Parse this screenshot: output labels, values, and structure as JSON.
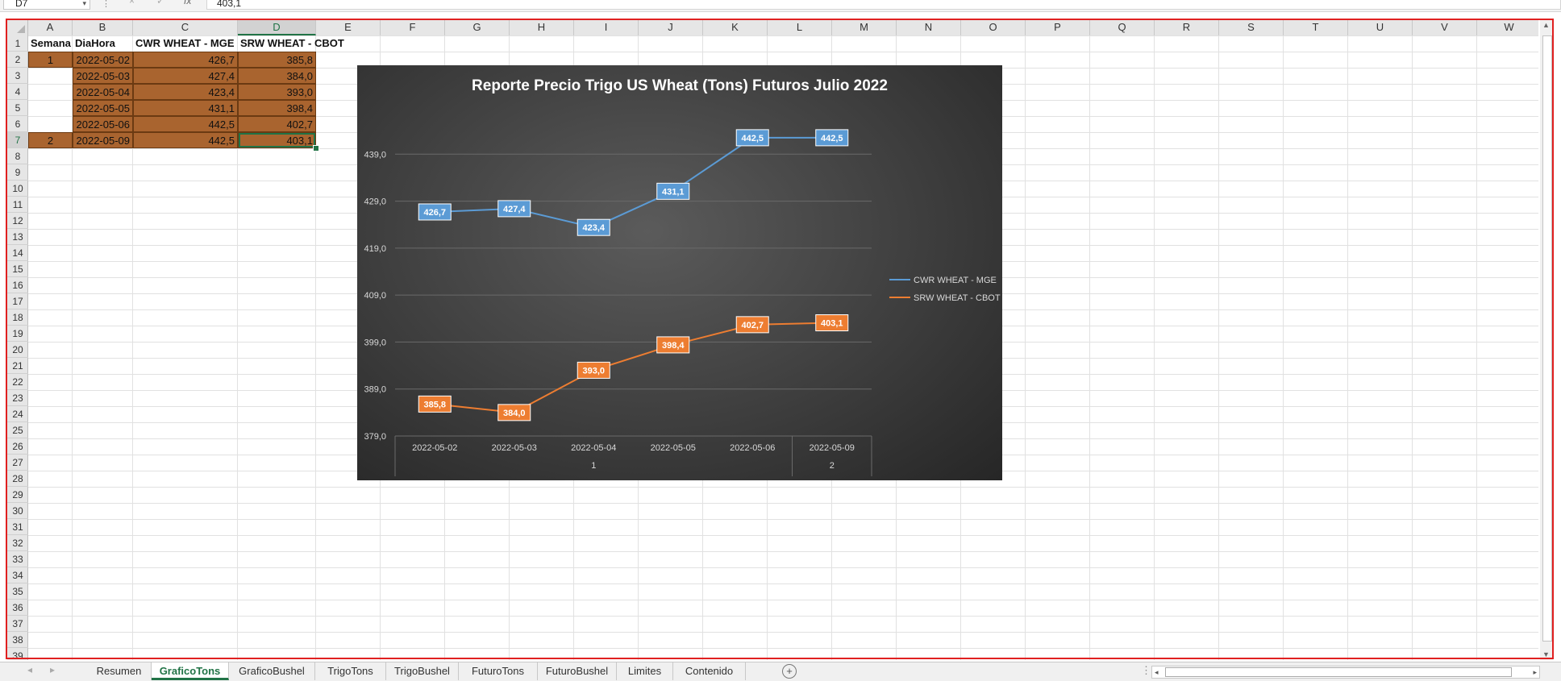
{
  "formula_bar": {
    "name_box": "D7",
    "cancel_icon": "×",
    "enter_icon": "✓",
    "fx_label": "fx",
    "value": "403,1"
  },
  "columns": [
    "A",
    "B",
    "C",
    "D",
    "E",
    "F",
    "G",
    "H",
    "I",
    "J",
    "K",
    "L",
    "M",
    "N",
    "O",
    "P",
    "Q",
    "R",
    "S",
    "T",
    "U",
    "V",
    "W"
  ],
  "rows": [
    "1",
    "2",
    "3",
    "4",
    "5",
    "6",
    "7",
    "8",
    "9",
    "10",
    "11",
    "12",
    "13",
    "14",
    "15",
    "16",
    "17",
    "18",
    "19",
    "20",
    "21",
    "22",
    "23",
    "24",
    "25",
    "26",
    "27",
    "28",
    "29",
    "30",
    "31",
    "32",
    "33",
    "34",
    "35",
    "36",
    "37",
    "38",
    "39"
  ],
  "table": {
    "headers": [
      "Semana",
      "DiaHora",
      "CWR WHEAT - MGE",
      "SRW WHEAT - CBOT"
    ],
    "rows": [
      [
        "1",
        "2022-05-02",
        "426,7",
        "385,8"
      ],
      [
        "",
        "2022-05-03",
        "427,4",
        "384,0"
      ],
      [
        "",
        "2022-05-04",
        "423,4",
        "393,0"
      ],
      [
        "",
        "2022-05-05",
        "431,1",
        "398,4"
      ],
      [
        "",
        "2022-05-06",
        "442,5",
        "402,7"
      ],
      [
        "2",
        "2022-05-09",
        "442,5",
        "403,1"
      ]
    ]
  },
  "chart_data": {
    "type": "line",
    "title": "Reporte Precio Trigo US Wheat (Tons) Futuros Julio 2022",
    "categories": [
      "2022-05-02",
      "2022-05-03",
      "2022-05-04",
      "2022-05-05",
      "2022-05-06",
      "2022-05-09"
    ],
    "group_labels": [
      {
        "label": "1",
        "span": [
          0,
          4
        ]
      },
      {
        "label": "2",
        "span": [
          5,
          5
        ]
      }
    ],
    "series": [
      {
        "name": "CWR WHEAT - MGE",
        "color": "#5b9bd5",
        "values": [
          426.7,
          427.4,
          423.4,
          431.1,
          442.5,
          442.5
        ],
        "labels": [
          "426,7",
          "427,4",
          "423,4",
          "431,1",
          "442,5",
          "442,5"
        ]
      },
      {
        "name": "SRW WHEAT - CBOT",
        "color": "#ed7d31",
        "values": [
          385.8,
          384.0,
          393.0,
          398.4,
          402.7,
          403.1
        ],
        "labels": [
          "385,8",
          "384,0",
          "393,0",
          "398,4",
          "402,7",
          "403,1"
        ]
      }
    ],
    "yticks": [
      "379,0",
      "389,0",
      "399,0",
      "409,0",
      "419,0",
      "429,0",
      "439,0"
    ],
    "ylim": [
      379,
      449
    ],
    "grid": true,
    "legend_position": "right"
  },
  "sheet_tabs": [
    "Resumen",
    "GraficoTons",
    "GraficoBushel",
    "TrigoTons",
    "TrigoBushel",
    "FuturoTons",
    "FuturoBushel",
    "Limites",
    "Contenido"
  ],
  "active_tab": "GraficoTons",
  "colors": {
    "cell_fill": "#a9642f",
    "excel_green": "#217346",
    "chart_bg": "#404040"
  }
}
